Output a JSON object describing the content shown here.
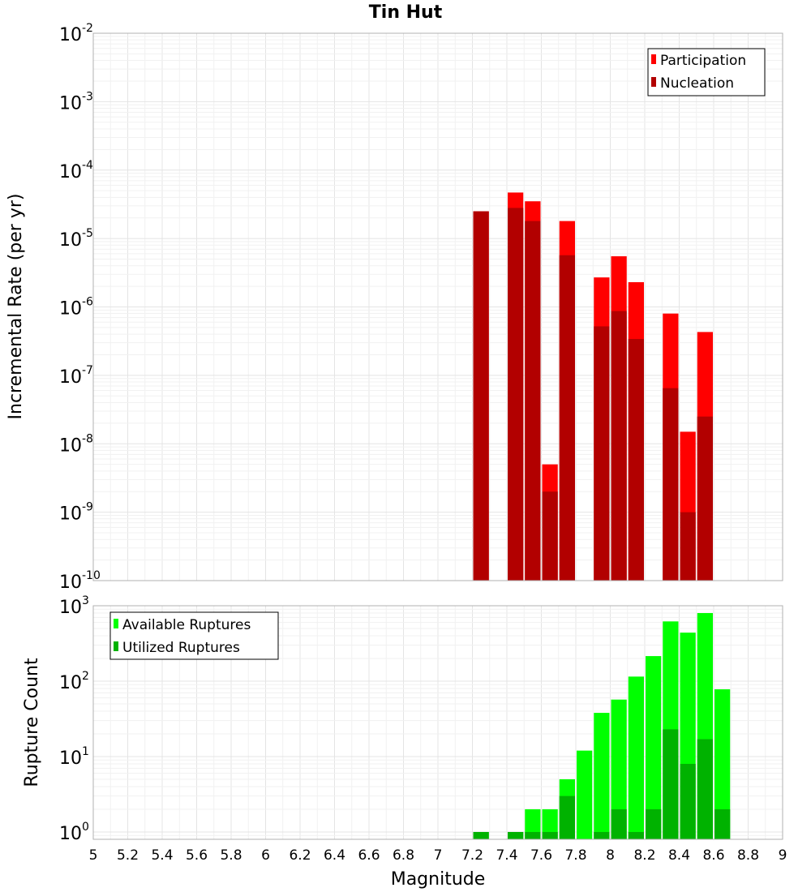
{
  "colors": {
    "participation": "#ff0000",
    "nucleation": "#b20000",
    "available": "#00ff00",
    "utilized": "#00b200",
    "grid_minor": "#f1f1f1",
    "grid_major": "#e4e4e4",
    "frame": "#b0b0b0"
  },
  "chart_data": [
    {
      "type": "bar",
      "title": "Tin Hut",
      "ylabel": "Incremental Rate (per yr)",
      "xlabel": "",
      "xlim": [
        5,
        9
      ],
      "ylim": [
        1e-10,
        0.01
      ],
      "yscale": "log",
      "y_tick_exponents": [
        "-10",
        "-9",
        "-8",
        "-7",
        "-6",
        "-5",
        "-4",
        "-3",
        "-2"
      ],
      "y_tick_base": "10",
      "grid": true,
      "legend_position": "top-right",
      "bin_width": 0.1,
      "series": [
        {
          "name": "Participation",
          "color_key": "participation",
          "points": [
            {
              "x": 7.25,
              "y": 2.5e-05
            },
            {
              "x": 7.45,
              "y": 4.7e-05
            },
            {
              "x": 7.55,
              "y": 3.5e-05
            },
            {
              "x": 7.65,
              "y": 5e-09
            },
            {
              "x": 7.75,
              "y": 1.8e-05
            },
            {
              "x": 7.95,
              "y": 2.7e-06
            },
            {
              "x": 8.05,
              "y": 5.5e-06
            },
            {
              "x": 8.15,
              "y": 2.3e-06
            },
            {
              "x": 8.35,
              "y": 8e-07
            },
            {
              "x": 8.45,
              "y": 1.5e-08
            },
            {
              "x": 8.55,
              "y": 4.3e-07
            }
          ]
        },
        {
          "name": "Nucleation",
          "color_key": "nucleation",
          "points": [
            {
              "x": 7.25,
              "y": 2.5e-05
            },
            {
              "x": 7.45,
              "y": 2.8e-05
            },
            {
              "x": 7.55,
              "y": 1.8e-05
            },
            {
              "x": 7.65,
              "y": 2e-09
            },
            {
              "x": 7.75,
              "y": 5.7e-06
            },
            {
              "x": 7.95,
              "y": 5.2e-07
            },
            {
              "x": 8.05,
              "y": 8.7e-07
            },
            {
              "x": 8.15,
              "y": 3.4e-07
            },
            {
              "x": 8.35,
              "y": 6.5e-08
            },
            {
              "x": 8.45,
              "y": 1e-09
            },
            {
              "x": 8.55,
              "y": 2.5e-08
            }
          ]
        }
      ]
    },
    {
      "type": "bar",
      "title": "",
      "ylabel": "Rupture Count",
      "xlabel": "Magnitude",
      "xlim": [
        5,
        9
      ],
      "ylim": [
        0.8,
        1000
      ],
      "yscale": "log",
      "y_tick_exponents": [
        "0",
        "1",
        "2",
        "3"
      ],
      "y_tick_base": "10",
      "x_ticks": [
        "5",
        "5.2",
        "5.4",
        "5.6",
        "5.8",
        "6",
        "6.2",
        "6.4",
        "6.6",
        "6.8",
        "7",
        "7.2",
        "7.4",
        "7.6",
        "7.8",
        "8",
        "8.2",
        "8.4",
        "8.6",
        "8.8",
        "9"
      ],
      "grid": true,
      "legend_position": "top-left",
      "bin_width": 0.1,
      "series": [
        {
          "name": "Available Ruptures",
          "color_key": "available",
          "points": [
            {
              "x": 7.25,
              "y": 1
            },
            {
              "x": 7.45,
              "y": 1
            },
            {
              "x": 7.55,
              "y": 2
            },
            {
              "x": 7.65,
              "y": 2
            },
            {
              "x": 7.75,
              "y": 5
            },
            {
              "x": 7.85,
              "y": 12
            },
            {
              "x": 7.95,
              "y": 38
            },
            {
              "x": 8.05,
              "y": 57
            },
            {
              "x": 8.15,
              "y": 115
            },
            {
              "x": 8.25,
              "y": 215
            },
            {
              "x": 8.35,
              "y": 620
            },
            {
              "x": 8.45,
              "y": 440
            },
            {
              "x": 8.55,
              "y": 800
            },
            {
              "x": 8.65,
              "y": 78
            }
          ]
        },
        {
          "name": "Utilized Ruptures",
          "color_key": "utilized",
          "points": [
            {
              "x": 7.25,
              "y": 1
            },
            {
              "x": 7.45,
              "y": 1
            },
            {
              "x": 7.55,
              "y": 1
            },
            {
              "x": 7.65,
              "y": 1
            },
            {
              "x": 7.75,
              "y": 3
            },
            {
              "x": 7.95,
              "y": 1
            },
            {
              "x": 8.05,
              "y": 2
            },
            {
              "x": 8.15,
              "y": 1
            },
            {
              "x": 8.25,
              "y": 2
            },
            {
              "x": 8.35,
              "y": 23
            },
            {
              "x": 8.45,
              "y": 8
            },
            {
              "x": 8.55,
              "y": 17
            },
            {
              "x": 8.65,
              "y": 2
            }
          ]
        }
      ]
    }
  ]
}
